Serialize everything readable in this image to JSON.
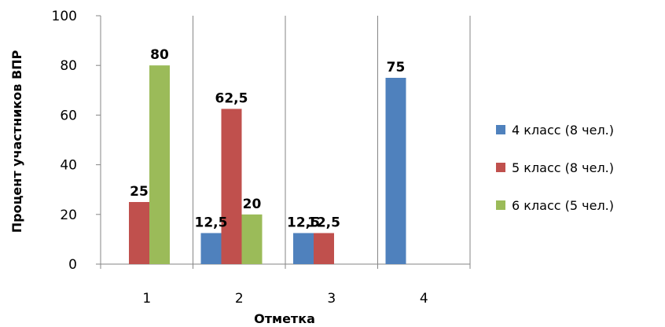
{
  "chart_data": {
    "type": "bar",
    "title": "",
    "xlabel": "Отметка",
    "ylabel": "Процент участников ВПР",
    "categories": [
      "1",
      "2",
      "3",
      "4"
    ],
    "ylim": [
      0,
      100
    ],
    "yticks": [
      "0",
      "20",
      "40",
      "60",
      "80",
      "100"
    ],
    "grid": "vertical lines between categories",
    "legend_position": "right",
    "series": [
      {
        "name": "4 класс (8 чел.)",
        "color": "#4F81BD",
        "values": [
          0,
          12.5,
          12.5,
          75
        ],
        "labels": [
          "",
          "12,5",
          "12,5",
          "75"
        ]
      },
      {
        "name": "5 класс (8 чел.)",
        "color": "#C0504D",
        "values": [
          25,
          62.5,
          12.5,
          0
        ],
        "labels": [
          "25",
          "62,5",
          "12,5",
          ""
        ]
      },
      {
        "name": "6 класс (5 чел.)",
        "color": "#9BBB59",
        "values": [
          80,
          20,
          0,
          0
        ],
        "labels": [
          "80",
          "20",
          "",
          ""
        ]
      }
    ]
  }
}
